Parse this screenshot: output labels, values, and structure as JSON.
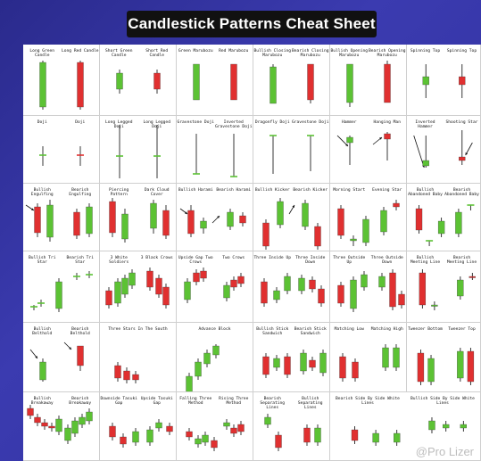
{
  "title": "Candlestick Patterns Cheat Sheet",
  "watermark": "@Pro Lizer",
  "colors": {
    "bull": "#5cc234",
    "bear": "#e03030",
    "wick": "#222222",
    "arrow": "#111111"
  },
  "rows": [
    [
      {
        "labels": [
          "Long Green Candle",
          "Long Red Candle"
        ]
      },
      {
        "labels": [
          "Short Green Candle",
          "Short Red Candle"
        ]
      },
      {
        "labels": [
          "Green Marubozu",
          "Red Marubozu"
        ]
      },
      {
        "labels": [
          "Bullish Closing Marubozu",
          "Bearish Closing Marubozu"
        ]
      },
      {
        "labels": [
          "Bullish Opening Marubozu",
          "Bearish Opening Marubozu"
        ]
      },
      {
        "labels": [
          "Spinning Top",
          "Spinning Top"
        ]
      }
    ],
    [
      {
        "labels": [
          "Doji",
          "Doji"
        ]
      },
      {
        "labels": [
          "Long Legged Doji",
          "Long Legged Doji"
        ]
      },
      {
        "labels": [
          "Gravestone Doji",
          "Inverted Gravestone Doji"
        ]
      },
      {
        "labels": [
          "Dragonfly Doji",
          "Gravestone Doji"
        ]
      },
      {
        "labels": [
          "Hammer",
          "Hanging Man"
        ]
      },
      {
        "labels": [
          "Inverted Hammer",
          "Shooting Star"
        ]
      }
    ],
    [
      {
        "labels": [
          "Bullish Engulfing",
          "Bearish Engulfing"
        ]
      },
      {
        "labels": [
          "Piercing Pattern",
          "Dark Cloud Cover"
        ]
      },
      {
        "labels": [
          "Bullish Harami",
          "Bearish Harami"
        ]
      },
      {
        "labels": [
          "Bullish Kicker",
          "Bearish Kicker"
        ]
      },
      {
        "labels": [
          "Morning Start",
          "Evening Star"
        ]
      },
      {
        "labels": [
          "Bullish Abandoned Baby",
          "Bearish Abandoned Baby"
        ]
      }
    ],
    [
      {
        "labels": [
          "Bullish Tri Star",
          "Bearish Tri Star"
        ]
      },
      {
        "labels": [
          "3 White Soldiers",
          "3 Black Crows"
        ]
      },
      {
        "labels": [
          "Upside Gap Two Crows",
          "Two Crows"
        ]
      },
      {
        "labels": [
          "Three Inside Up",
          "Three Inside Down"
        ]
      },
      {
        "labels": [
          "Three Outside Up",
          "Three Outside Down"
        ]
      },
      {
        "labels": [
          "Bullish Meeting Line",
          "Bearish Meeting Line"
        ]
      }
    ],
    [
      {
        "labels": [
          "Bullish Belthold",
          "Bearish Belthold"
        ]
      },
      {
        "labels": [
          "Three Stars In The South"
        ]
      },
      {
        "labels": [
          "Advance Block"
        ]
      },
      {
        "labels": [
          "Bullish Stick Sandwich",
          "Bearish Stick Sandwich"
        ]
      },
      {
        "labels": [
          "Matching Low",
          "Matching High"
        ]
      },
      {
        "labels": [
          "Tweezer Bottom",
          "Tweezer Top"
        ]
      }
    ],
    [
      {
        "labels": [
          "Bullish Breakaway",
          "Bearish Breakaway"
        ]
      },
      {
        "labels": [
          "Downside Tasuki Gap",
          "Upside Tasuki Gap"
        ]
      },
      {
        "labels": [
          "Falling Three Method",
          "Rising Three Method"
        ]
      },
      {
        "labels": [
          "Bearish Separating Lines",
          "Bullish Separating Lines"
        ]
      },
      {
        "labels": [
          "Bearish Side By Side White Lines",
          "Bullish Side By Side White Lines"
        ]
      }
    ]
  ]
}
